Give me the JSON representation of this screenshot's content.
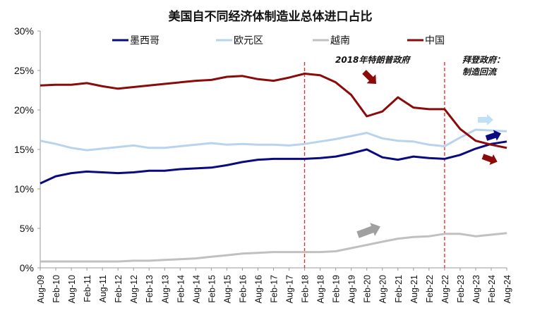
{
  "chart_data": {
    "type": "line",
    "title": "美国自不同经济体制造业总体进口占比",
    "xlabel": "",
    "ylabel": "",
    "ylim": [
      0,
      30
    ],
    "yticks": [
      "0%",
      "5%",
      "10%",
      "15%",
      "20%",
      "25%",
      "30%"
    ],
    "ytick_values": [
      0,
      5,
      10,
      15,
      20,
      25,
      30
    ],
    "grid": false,
    "legend_position": "top",
    "x": [
      "Aug-09",
      "Feb-10",
      "Aug-10",
      "Feb-11",
      "Aug-11",
      "Feb-12",
      "Aug-12",
      "Feb-13",
      "Aug-13",
      "Feb-14",
      "Aug-14",
      "Feb-15",
      "Aug-15",
      "Feb-16",
      "Aug-16",
      "Feb-17",
      "Aug-17",
      "Feb-18",
      "Aug-18",
      "Feb-19",
      "Aug-19",
      "Feb-20",
      "Aug-20",
      "Feb-21",
      "Aug-21",
      "Feb-22",
      "Aug-22",
      "Feb-23",
      "Aug-23",
      "Feb-24",
      "Aug-24"
    ],
    "series": [
      {
        "name": "墨西哥",
        "color": "#0a0a80",
        "values": [
          10.7,
          11.6,
          12.0,
          12.2,
          12.1,
          12.0,
          12.1,
          12.3,
          12.3,
          12.5,
          12.6,
          12.7,
          13.0,
          13.4,
          13.7,
          13.8,
          13.8,
          13.8,
          13.9,
          14.1,
          14.5,
          15.0,
          14.0,
          13.7,
          14.1,
          13.9,
          13.8,
          14.3,
          15.1,
          15.7,
          16.0
        ]
      },
      {
        "name": "欧元区",
        "color": "#b8d3ee",
        "values": [
          16.1,
          15.7,
          15.2,
          14.9,
          15.1,
          15.3,
          15.5,
          15.2,
          15.2,
          15.4,
          15.6,
          15.8,
          15.6,
          15.7,
          15.6,
          15.6,
          15.5,
          15.7,
          16.0,
          16.3,
          16.7,
          17.1,
          16.4,
          16.1,
          16.0,
          15.6,
          15.4,
          16.5,
          17.5,
          17.4,
          17.3
        ]
      },
      {
        "name": "越南",
        "color": "#c0c0c0",
        "values": [
          0.8,
          0.8,
          0.8,
          0.8,
          0.8,
          0.8,
          0.9,
          0.9,
          1.0,
          1.1,
          1.2,
          1.4,
          1.6,
          1.8,
          1.9,
          2.0,
          2.0,
          2.0,
          2.0,
          2.1,
          2.5,
          2.9,
          3.3,
          3.7,
          3.9,
          4.0,
          4.3,
          4.3,
          4.0,
          4.2,
          4.4
        ]
      },
      {
        "name": "中国",
        "color": "#8b0a0a",
        "values": [
          23.1,
          23.2,
          23.2,
          23.4,
          23.0,
          22.7,
          22.9,
          23.1,
          23.3,
          23.5,
          23.7,
          23.8,
          24.2,
          24.3,
          23.9,
          23.7,
          24.1,
          24.6,
          24.4,
          23.5,
          21.9,
          19.2,
          19.8,
          21.6,
          20.3,
          20.1,
          20.1,
          17.6,
          16.1,
          15.6,
          15.2
        ]
      }
    ],
    "vlines": [
      "Feb-18",
      "Aug-22"
    ],
    "annotations": [
      "2018年特朗普政府",
      "拜登政府：",
      "制造回流"
    ]
  }
}
